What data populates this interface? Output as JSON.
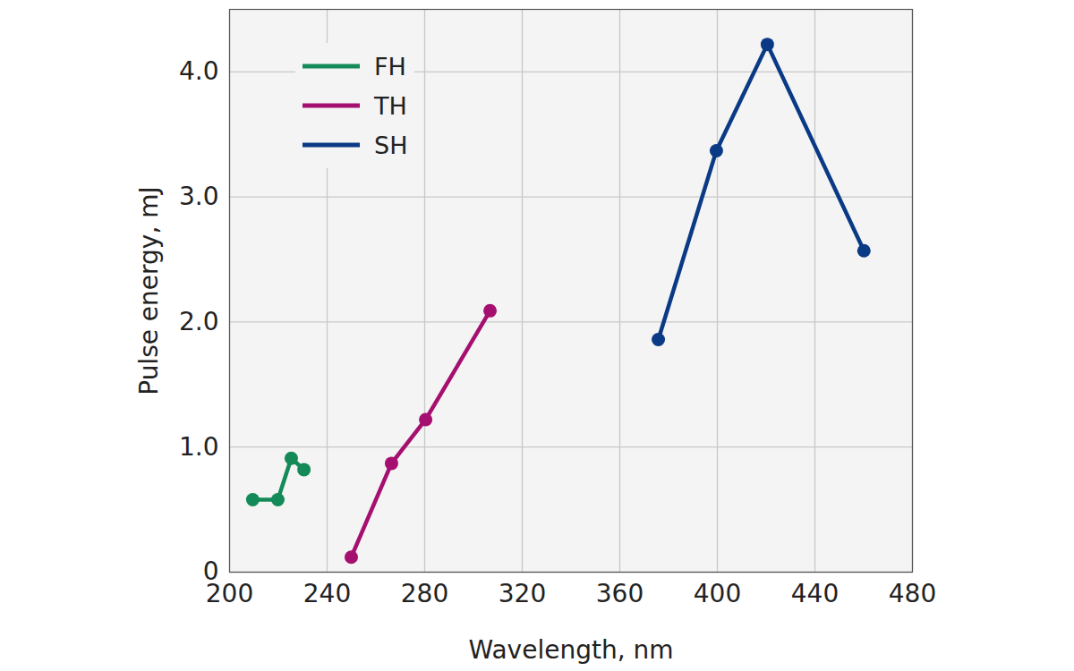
{
  "chart_data": {
    "type": "line",
    "xlabel": "Wavelength, nm",
    "ylabel": "Pulse energy, mJ",
    "xlim": [
      200,
      480
    ],
    "xticks": [
      200,
      240,
      280,
      320,
      360,
      400,
      440,
      480
    ],
    "ylim": [
      0,
      4.5
    ],
    "yticks": [
      0,
      {
        "value": 1,
        "label": "1.0"
      },
      {
        "value": 2,
        "label": "2.0"
      },
      {
        "value": 3,
        "label": "3.0"
      },
      {
        "value": 4,
        "label": "4.0"
      }
    ],
    "grid": true,
    "legend": "upper left",
    "marker": "circle",
    "series": [
      {
        "name": "FH",
        "color": "#138a57",
        "x": [
          209.5,
          219.8,
          225.3,
          230.5
        ],
        "values": [
          0.58,
          0.58,
          0.91,
          0.82
        ]
      },
      {
        "name": "TH",
        "color": "#a50f6f",
        "x": [
          249.9,
          266.4,
          280.4,
          306.8
        ],
        "values": [
          0.12,
          0.87,
          1.22,
          2.09
        ]
      },
      {
        "name": "SH",
        "color": "#0a3a85",
        "x": [
          375.8,
          399.6,
          420.5,
          460.1
        ],
        "values": [
          1.86,
          3.37,
          4.22,
          2.57
        ]
      }
    ]
  }
}
